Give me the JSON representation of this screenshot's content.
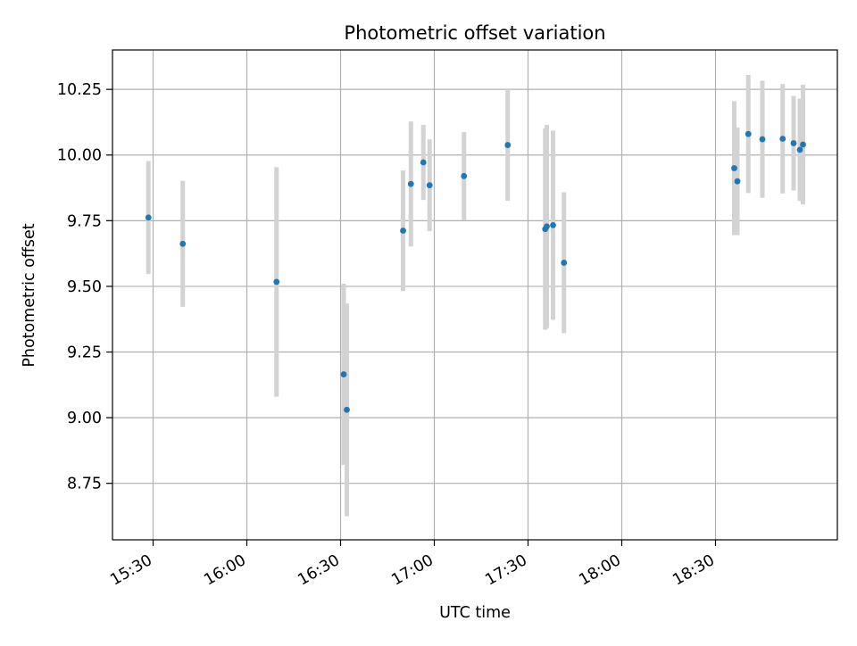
{
  "chart_data": {
    "type": "scatter",
    "title": "Photometric offset variation",
    "xlabel": "UTC time",
    "ylabel": "Photometric offset",
    "x_axis_type": "time",
    "xlim": [
      "15:17",
      "19:09"
    ],
    "ylim": [
      8.535,
      10.4
    ],
    "grid": true,
    "xtick_labels": [
      "15:30",
      "16:00",
      "16:30",
      "17:00",
      "17:30",
      "18:00",
      "18:30"
    ],
    "ytick_labels": [
      "8.75",
      "9.00",
      "9.25",
      "9.50",
      "9.75",
      "10.00",
      "10.25"
    ],
    "series": [
      {
        "point_color": "#1f77b4",
        "errorbar_color": "#d3d3d3",
        "points": [
          {
            "x": "15:28:30",
            "y": 9.762,
            "err": 0.215
          },
          {
            "x": "15:39:30",
            "y": 9.662,
            "err": 0.24
          },
          {
            "x": "16:09:30",
            "y": 9.517,
            "err": 0.437
          },
          {
            "x": "16:31:00",
            "y": 9.165,
            "err": 0.345
          },
          {
            "x": "16:32:00",
            "y": 9.03,
            "err": 0.405
          },
          {
            "x": "16:50:00",
            "y": 9.712,
            "err": 0.23
          },
          {
            "x": "16:52:30",
            "y": 9.89,
            "err": 0.238
          },
          {
            "x": "16:56:30",
            "y": 9.972,
            "err": 0.143
          },
          {
            "x": "16:58:30",
            "y": 9.885,
            "err": 0.175
          },
          {
            "x": "17:09:30",
            "y": 9.92,
            "err": 0.167
          },
          {
            "x": "17:23:30",
            "y": 10.038,
            "err": 0.212
          },
          {
            "x": "17:35:30",
            "y": 9.718,
            "err": 0.383
          },
          {
            "x": "17:36:00",
            "y": 9.728,
            "err": 0.387
          },
          {
            "x": "17:38:00",
            "y": 9.733,
            "err": 0.36
          },
          {
            "x": "17:41:30",
            "y": 9.59,
            "err": 0.268
          },
          {
            "x": "18:36:00",
            "y": 9.95,
            "err": 0.255
          },
          {
            "x": "18:37:00",
            "y": 9.9,
            "err": 0.205
          },
          {
            "x": "18:40:30",
            "y": 10.08,
            "err": 0.225
          },
          {
            "x": "18:45:00",
            "y": 10.06,
            "err": 0.223
          },
          {
            "x": "18:51:30",
            "y": 10.062,
            "err": 0.208
          },
          {
            "x": "18:55:00",
            "y": 10.045,
            "err": 0.18
          },
          {
            "x": "18:57:00",
            "y": 10.02,
            "err": 0.195
          },
          {
            "x": "18:58:00",
            "y": 10.04,
            "err": 0.228
          }
        ]
      }
    ]
  }
}
